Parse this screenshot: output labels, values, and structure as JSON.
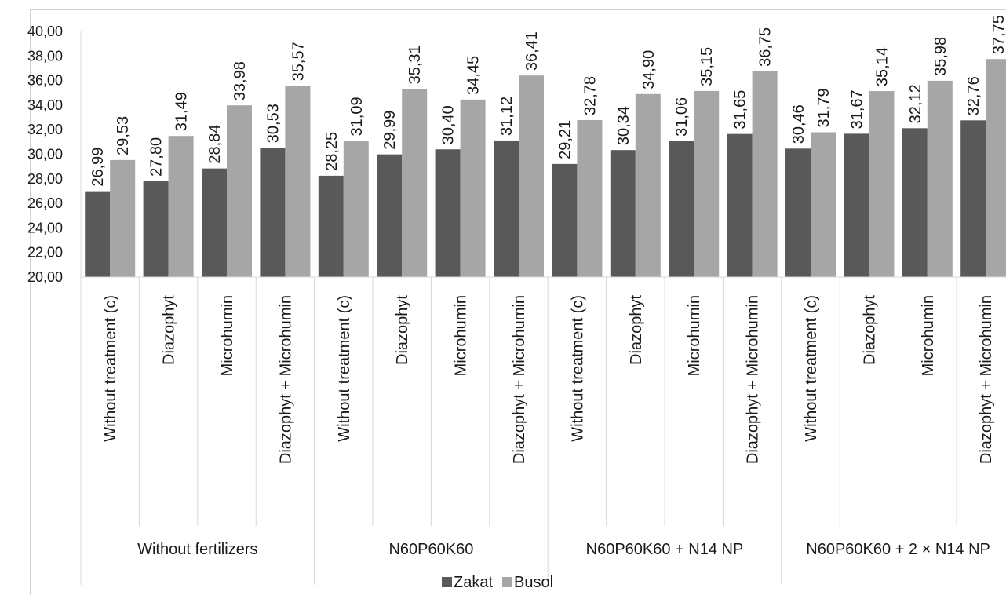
{
  "chart_data": {
    "type": "bar",
    "title": "",
    "xlabel": "",
    "ylabel": "",
    "ylim": [
      20,
      40
    ],
    "y_ticks": [
      "20,00",
      "22,00",
      "24,00",
      "26,00",
      "28,00",
      "30,00",
      "32,00",
      "34,00",
      "36,00",
      "38,00",
      "40,00"
    ],
    "grid": false,
    "legend_position": "bottom",
    "groups": [
      {
        "label": "Without fertilizers",
        "categories": [
          "Without treatment (c)",
          "Diazophyt",
          "Microhumin",
          "Diazophyt + Microhumin"
        ]
      },
      {
        "label": "N60P60K60",
        "categories": [
          "Without treatment (c)",
          "Diazophyt",
          "Microhumin",
          "Diazophyt + Microhumin"
        ]
      },
      {
        "label": "N60P60K60 + N14 NP",
        "categories": [
          "Without treatment (c)",
          "Diazophyt",
          "Microhumin",
          "Diazophyt + Microhumin"
        ]
      },
      {
        "label": "N60P60K60 + 2 × N14 NP",
        "categories": [
          "Without treatment (c)",
          "Diazophyt",
          "Microhumin",
          "Diazophyt + Microhumin"
        ]
      }
    ],
    "series": [
      {
        "name": "Zakat",
        "color": "#595959",
        "values": [
          26.99,
          27.8,
          28.84,
          30.53,
          28.25,
          29.99,
          30.4,
          31.12,
          29.21,
          30.34,
          31.06,
          31.65,
          30.46,
          31.67,
          32.12,
          32.76
        ],
        "labels": [
          "26,99",
          "27,80",
          "28,84",
          "30,53",
          "28,25",
          "29,99",
          "30,40",
          "31,12",
          "29,21",
          "30,34",
          "31,06",
          "31,65",
          "30,46",
          "31,67",
          "32,12",
          "32,76"
        ]
      },
      {
        "name": "Busol",
        "color": "#a6a6a6",
        "values": [
          29.53,
          31.49,
          33.98,
          35.57,
          31.09,
          35.31,
          34.45,
          36.41,
          32.78,
          34.9,
          35.15,
          36.75,
          31.79,
          35.14,
          35.98,
          37.75
        ],
        "labels": [
          "29,53",
          "31,49",
          "33,98",
          "35,57",
          "31,09",
          "35,31",
          "34,45",
          "36,41",
          "32,78",
          "34,90",
          "35,15",
          "36,75",
          "31,79",
          "35,14",
          "35,98",
          "37,75"
        ]
      }
    ]
  }
}
